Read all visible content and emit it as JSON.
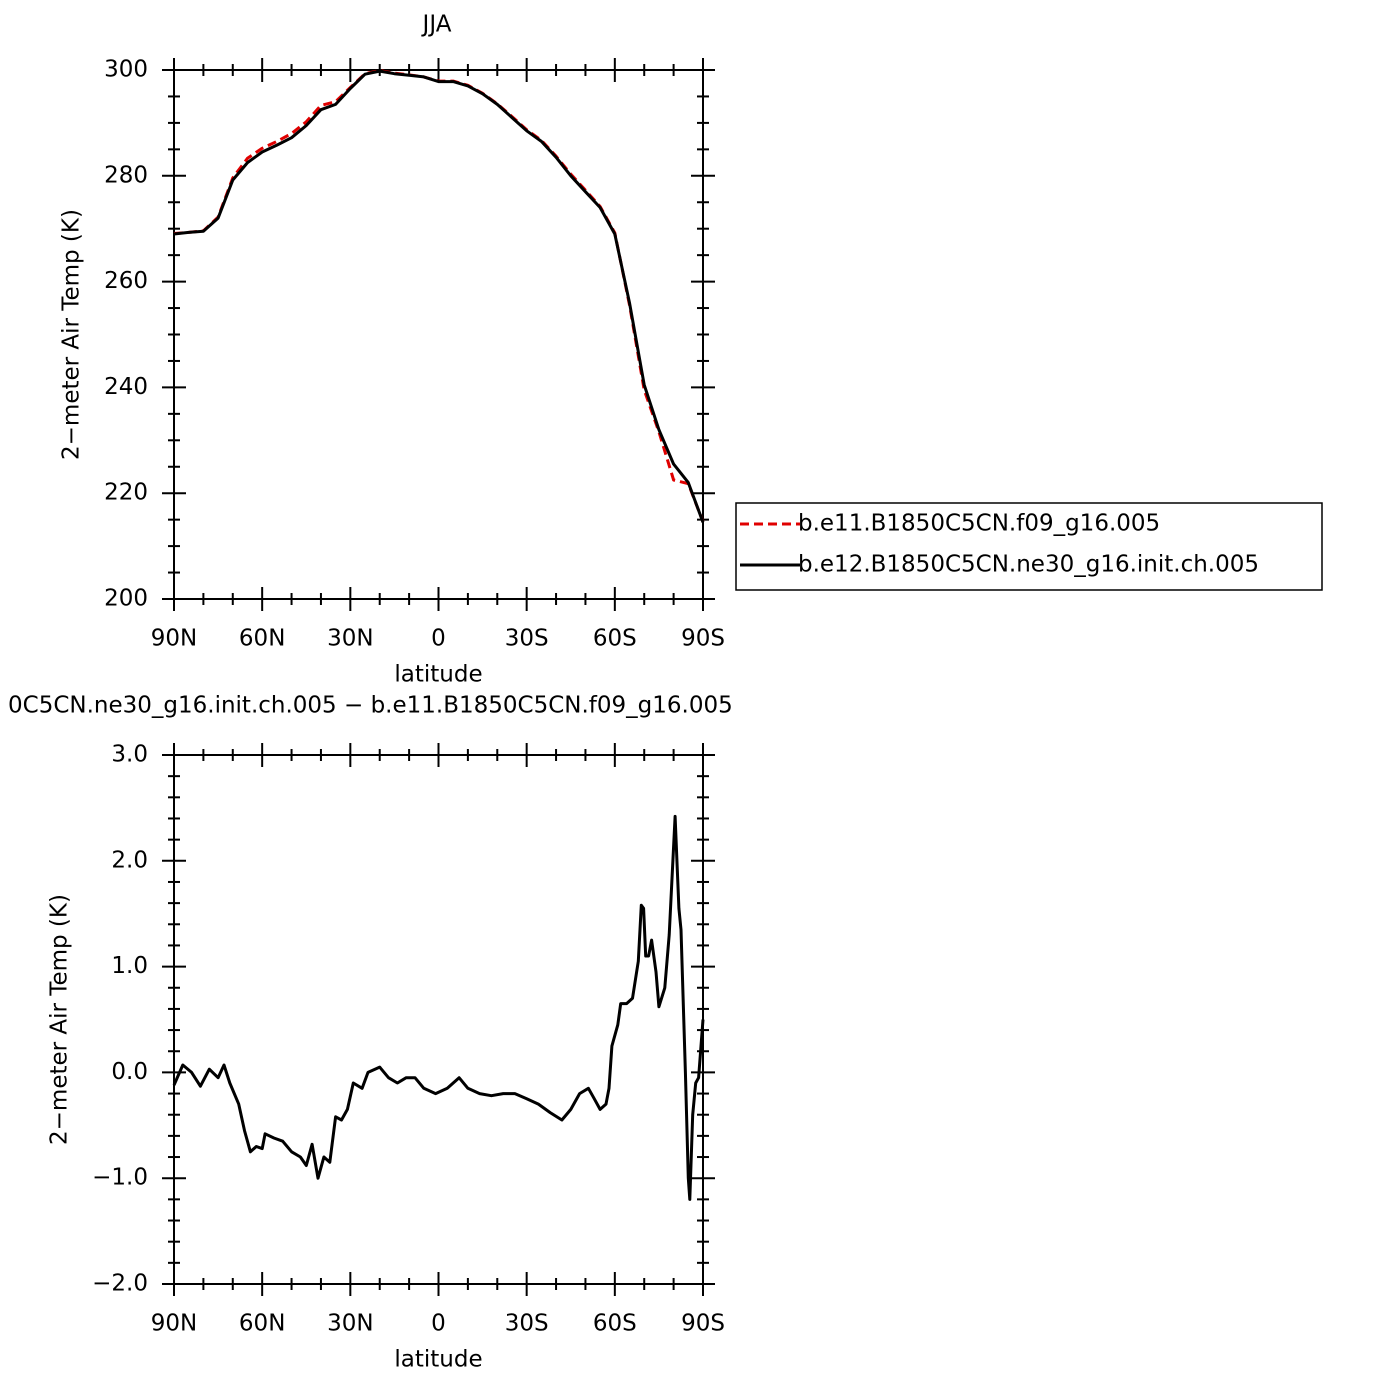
{
  "chart_data": [
    {
      "type": "line",
      "title": "JJA",
      "xlabel": "latitude",
      "ylabel": "2−meter Air Temp (K)",
      "x": [
        90,
        85,
        80,
        75,
        70,
        65,
        60,
        55,
        50,
        45,
        40,
        35,
        30,
        25,
        20,
        15,
        10,
        5,
        0,
        -5,
        -10,
        -15,
        -20,
        -25,
        -30,
        -35,
        -40,
        -45,
        -50,
        -55,
        -60,
        -65,
        -70,
        -75,
        -80,
        -85,
        -90
      ],
      "series": [
        {
          "name": "b.e11.B1850C5CN.f09_g16.005",
          "color": "#e00000",
          "dash": true,
          "values": [
            269.1,
            269.3,
            269.6,
            272.2,
            279.6,
            283.3,
            285.2,
            286.5,
            288.0,
            290.2,
            293.3,
            294.0,
            296.7,
            299.3,
            299.9,
            299.4,
            299.1,
            298.7,
            297.9,
            297.9,
            297.1,
            295.6,
            293.6,
            291.2,
            288.7,
            286.7,
            283.7,
            280.3,
            277.3,
            274.2,
            269.2,
            255.6,
            239.5,
            231.6,
            222.5,
            221.8,
            214.6
          ]
        },
        {
          "name": "b.e12.B1850C5CN.ne30_g16.init.ch.005",
          "color": "#000000",
          "dash": false,
          "values": [
            269.0,
            269.3,
            269.5,
            272.0,
            279.2,
            282.5,
            284.5,
            285.8,
            287.2,
            289.5,
            292.5,
            293.5,
            296.5,
            299.2,
            299.8,
            299.3,
            299.0,
            298.7,
            297.8,
            297.8,
            297.0,
            295.5,
            293.5,
            291.0,
            288.5,
            286.5,
            283.5,
            280.0,
            277.0,
            274.0,
            269.0,
            256.0,
            240.5,
            232.0,
            225.5,
            222.0,
            214.5
          ]
        }
      ],
      "xlim": [
        90,
        -90
      ],
      "xticks": [
        {
          "value": 90,
          "label": "90N"
        },
        {
          "value": 60,
          "label": "60N"
        },
        {
          "value": 30,
          "label": "30N"
        },
        0,
        {
          "value": -30,
          "label": "30S"
        },
        {
          "value": -60,
          "label": "60S"
        },
        {
          "value": -90,
          "label": "90S"
        }
      ],
      "ylim": [
        200,
        300
      ],
      "yticks": [
        200,
        220,
        240,
        260,
        280,
        300
      ],
      "legend": "right"
    },
    {
      "type": "line",
      "title": "0C5CN.ne30_g16.init.ch.005 − b.e11.B1850C5CN.f09_g16.005",
      "xlabel": "latitude",
      "ylabel": "2−meter Air Temp (K)",
      "x": [
        90,
        87,
        84,
        81,
        78,
        75,
        73,
        71,
        68,
        66,
        64,
        62,
        60,
        59,
        56,
        53,
        50,
        47,
        45,
        43,
        41,
        39,
        37,
        35,
        33,
        31,
        29,
        26,
        24,
        20,
        17,
        14,
        11,
        8,
        5,
        1,
        -3,
        -7,
        -10,
        -14,
        -18,
        -22,
        -26,
        -30,
        -34,
        -38,
        -42,
        -45,
        -48,
        -51,
        -53,
        -55,
        -57,
        -58,
        -59,
        -61,
        -62,
        -64,
        -66,
        -68,
        -69,
        -69.8,
        -70.5,
        -71.5,
        -72.5,
        -74,
        -75,
        -77,
        -78.5,
        -80.5,
        -81.8,
        -82.5,
        -84,
        -85,
        -85.5,
        -86.5,
        -87.5,
        -88.5,
        -90
      ],
      "values": [
        -0.12,
        0.07,
        0.0,
        -0.13,
        0.03,
        -0.05,
        0.07,
        -0.1,
        -0.3,
        -0.55,
        -0.75,
        -0.7,
        -0.72,
        -0.58,
        -0.62,
        -0.65,
        -0.75,
        -0.8,
        -0.88,
        -0.68,
        -1.0,
        -0.8,
        -0.85,
        -0.42,
        -0.45,
        -0.35,
        -0.1,
        -0.15,
        0.0,
        0.05,
        -0.05,
        -0.1,
        -0.05,
        -0.05,
        -0.15,
        -0.2,
        -0.15,
        -0.05,
        -0.15,
        -0.2,
        -0.22,
        -0.2,
        -0.2,
        -0.25,
        -0.3,
        -0.38,
        -0.45,
        -0.35,
        -0.2,
        -0.15,
        -0.25,
        -0.35,
        -0.3,
        -0.15,
        0.25,
        0.45,
        0.65,
        0.65,
        0.7,
        1.05,
        1.58,
        1.55,
        1.1,
        1.1,
        1.25,
        0.95,
        0.62,
        0.8,
        1.3,
        2.42,
        1.55,
        1.35,
        0.0,
        -1.0,
        -1.2,
        -0.4,
        -0.1,
        -0.05,
        0.5
      ],
      "color": "#000000",
      "xlim": [
        90,
        -90
      ],
      "xticks": [
        {
          "value": 90,
          "label": "90N"
        },
        {
          "value": 60,
          "label": "60N"
        },
        {
          "value": 30,
          "label": "30N"
        },
        0,
        {
          "value": -30,
          "label": "30S"
        },
        {
          "value": -60,
          "label": "60S"
        },
        {
          "value": -90,
          "label": "90S"
        }
      ],
      "ylim": [
        -2,
        3
      ],
      "yticks": [
        {
          "value": -2,
          "label": "−2.0"
        },
        {
          "value": -1,
          "label": "−1.0"
        },
        {
          "value": 0,
          "label": "0.0"
        },
        {
          "value": 1,
          "label": "1.0"
        },
        {
          "value": 2,
          "label": "2.0"
        },
        {
          "value": 3,
          "label": "3.0"
        }
      ]
    }
  ]
}
